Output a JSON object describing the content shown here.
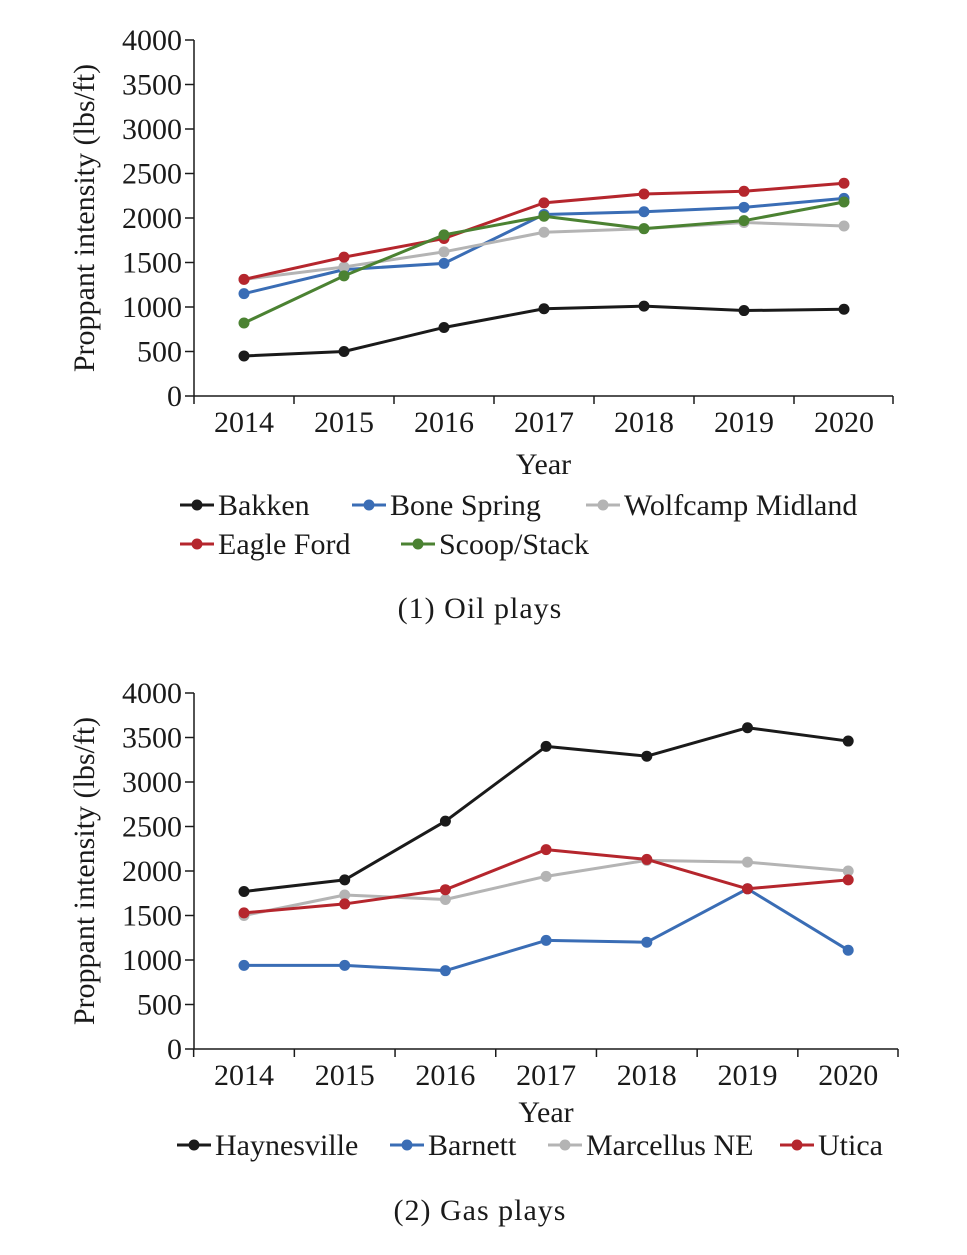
{
  "chart_data": [
    {
      "type": "line",
      "title": "",
      "caption": "(1) Oil plays",
      "xlabel": "Year",
      "ylabel": "Proppant intensity (lbs/ft)",
      "categories": [
        "2014",
        "2015",
        "2016",
        "2017",
        "2018",
        "2019",
        "2020"
      ],
      "ylim": [
        0,
        4000
      ],
      "yticks": [
        0,
        500,
        1000,
        1500,
        2000,
        2500,
        3000,
        3500,
        4000
      ],
      "grid": false,
      "legend_position": "bottom",
      "series": [
        {
          "name": "Bakken",
          "color": "#1a1a1a",
          "values": [
            450,
            500,
            770,
            980,
            1010,
            960,
            975
          ]
        },
        {
          "name": "Bone Spring",
          "color": "#3a6db5",
          "values": [
            1150,
            1420,
            1490,
            2040,
            2070,
            2120,
            2220
          ]
        },
        {
          "name": "Wolfcamp Midland",
          "color": "#b4b4b4",
          "values": [
            1310,
            1450,
            1620,
            1840,
            1880,
            1950,
            1910
          ]
        },
        {
          "name": "Eagle Ford",
          "color": "#b5262d",
          "values": [
            1310,
            1560,
            1770,
            2170,
            2270,
            2300,
            2390
          ]
        },
        {
          "name": "Scoop/Stack",
          "color": "#4b8232",
          "values": [
            820,
            1350,
            1810,
            2020,
            1880,
            1970,
            2180
          ]
        }
      ]
    },
    {
      "type": "line",
      "title": "",
      "caption": "(2) Gas plays",
      "xlabel": "Year",
      "ylabel": "Proppant intensity (lbs/ft)",
      "categories": [
        "2014",
        "2015",
        "2016",
        "2017",
        "2018",
        "2019",
        "2020"
      ],
      "ylim": [
        0,
        4000
      ],
      "yticks": [
        0,
        500,
        1000,
        1500,
        2000,
        2500,
        3000,
        3500,
        4000
      ],
      "grid": false,
      "legend_position": "bottom",
      "series": [
        {
          "name": "Haynesville",
          "color": "#1a1a1a",
          "values": [
            1770,
            1900,
            2560,
            3400,
            3290,
            3610,
            3460
          ]
        },
        {
          "name": "Barnett",
          "color": "#3a6db5",
          "values": [
            940,
            940,
            880,
            1220,
            1200,
            1800,
            1110
          ]
        },
        {
          "name": "Marcellus NE",
          "color": "#b4b4b4",
          "values": [
            1500,
            1730,
            1680,
            1940,
            2120,
            2100,
            2000
          ]
        },
        {
          "name": "Utica",
          "color": "#b5262d",
          "values": [
            1530,
            1630,
            1790,
            2240,
            2130,
            1800,
            1900
          ]
        }
      ]
    }
  ]
}
